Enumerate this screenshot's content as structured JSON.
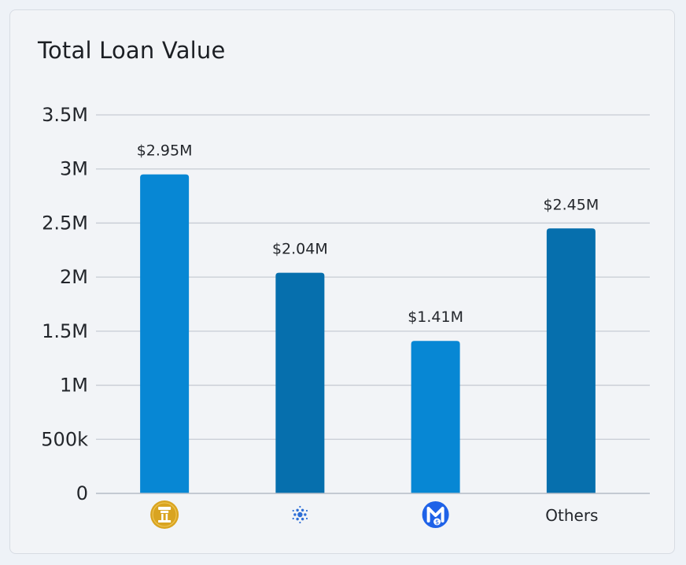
{
  "card": {
    "title": "Total Loan Value"
  },
  "chart_data": {
    "type": "bar",
    "title": "Total Loan Value",
    "categories": [
      {
        "label": "",
        "icon": "gold-coin-icon"
      },
      {
        "label": "",
        "icon": "cardano-icon"
      },
      {
        "label": "",
        "icon": "m-dollar-coin-icon"
      },
      {
        "label": "Others",
        "icon": ""
      }
    ],
    "values": [
      2950000,
      2040000,
      1410000,
      2450000
    ],
    "value_labels": [
      "$2.95M",
      "$2.04M",
      "$1.41M",
      "$2.45M"
    ],
    "bar_colors": [
      "#0787d4",
      "#066fad",
      "#0787d4",
      "#066fad"
    ],
    "ylim": [
      0,
      3500000
    ],
    "yticks": [
      {
        "value": 0,
        "label": "0"
      },
      {
        "value": 500000,
        "label": "500k"
      },
      {
        "value": 1000000,
        "label": "1M"
      },
      {
        "value": 1500000,
        "label": "1.5M"
      },
      {
        "value": 2000000,
        "label": "2M"
      },
      {
        "value": 2500000,
        "label": "2.5M"
      },
      {
        "value": 3000000,
        "label": "3M"
      },
      {
        "value": 3500000,
        "label": "3.5M"
      }
    ],
    "grid": true,
    "xlabel": "",
    "ylabel": ""
  }
}
